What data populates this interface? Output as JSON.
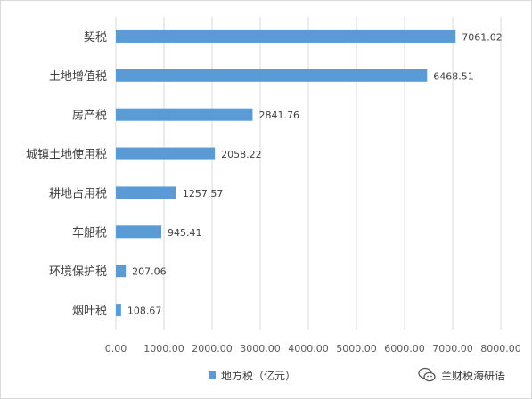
{
  "chart_data": {
    "type": "bar",
    "orientation": "horizontal",
    "categories": [
      "契税",
      "土地增值税",
      "房产税",
      "城镇土地使用税",
      "耕地占用税",
      "车船税",
      "环境保护税",
      "烟叶税"
    ],
    "series": [
      {
        "name": "地方税（亿元）",
        "values": [
          7061.02,
          6468.51,
          2841.76,
          2058.22,
          1257.57,
          945.41,
          207.06,
          108.67
        ],
        "data_labels": [
          "7061.02",
          "6468.51",
          "2841.76",
          "2058.22",
          "1257.57",
          "945.41",
          "207.06",
          "108.67"
        ]
      }
    ],
    "x_ticks": [
      "0.00",
      "1000.00",
      "2000.00",
      "3000.00",
      "4000.00",
      "5000.00",
      "6000.00",
      "7000.00",
      "8000.00"
    ],
    "xlim": [
      0,
      8000
    ],
    "grid": "vertical",
    "legend_position": "bottom",
    "color": "#5b9bd5",
    "title": "",
    "xlabel": "",
    "ylabel": ""
  },
  "legend": {
    "label": "地方税（亿元）"
  },
  "watermark": {
    "text": "兰财税海研语"
  }
}
